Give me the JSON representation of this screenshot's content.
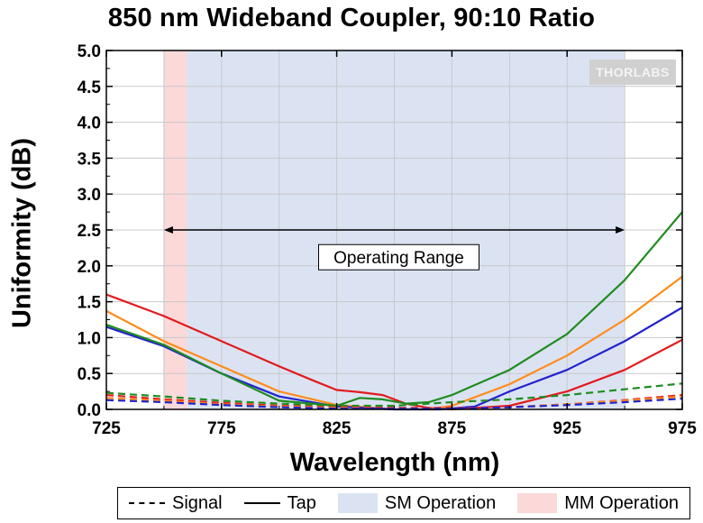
{
  "chart_data": {
    "type": "line",
    "title": "850 nm Wideband Coupler, 90:10 Ratio",
    "xlabel": "Wavelength (nm)",
    "ylabel": "Uniformity (dB)",
    "xlim": [
      725,
      975
    ],
    "ylim": [
      0,
      5.0
    ],
    "x_ticks": [
      "725",
      "775",
      "825",
      "875",
      "925",
      "975"
    ],
    "y_ticks": [
      "0.0",
      "0.5",
      "1.0",
      "1.5",
      "2.0",
      "2.5",
      "3.0",
      "3.5",
      "4.0",
      "4.5",
      "5.0"
    ],
    "grid": true,
    "regions": [
      {
        "name": "MM Operation",
        "x_start": 750,
        "x_end": 760,
        "color": "#fbd9d9"
      },
      {
        "name": "SM Operation",
        "x_start": 760,
        "x_end": 950,
        "color": "#dbe3f3"
      }
    ],
    "annotation": {
      "text": "Operating Range",
      "x_start": 750,
      "x_end": 950,
      "y": 2.5
    },
    "series": [
      {
        "label": "Tap",
        "color": "#e31a1c",
        "style": "solid",
        "x": [
          725,
          750,
          775,
          800,
          815,
          825,
          835,
          845,
          855,
          865,
          875,
          900,
          925,
          950,
          975
        ],
        "y": [
          1.6,
          1.3,
          0.95,
          0.6,
          0.4,
          0.27,
          0.24,
          0.2,
          0.08,
          0.02,
          0.0,
          0.05,
          0.25,
          0.55,
          0.97
        ]
      },
      {
        "label": "Tap",
        "color": "#ff8c1a",
        "style": "solid",
        "x": [
          725,
          750,
          775,
          800,
          825,
          850,
          865,
          875,
          900,
          925,
          950,
          975
        ],
        "y": [
          1.37,
          0.95,
          0.6,
          0.25,
          0.06,
          0.0,
          0.0,
          0.05,
          0.35,
          0.75,
          1.25,
          1.85
        ]
      },
      {
        "label": "Tap",
        "color": "#2222cc",
        "style": "solid",
        "x": [
          725,
          750,
          775,
          800,
          825,
          850,
          870,
          885,
          900,
          925,
          950,
          975
        ],
        "y": [
          1.15,
          0.88,
          0.5,
          0.18,
          0.04,
          0.0,
          0.0,
          0.04,
          0.25,
          0.55,
          0.95,
          1.42
        ]
      },
      {
        "label": "Tap",
        "color": "#1f8c1f",
        "style": "solid",
        "x": [
          725,
          750,
          775,
          800,
          825,
          835,
          845,
          855,
          865,
          875,
          900,
          925,
          950,
          975
        ],
        "y": [
          1.18,
          0.9,
          0.5,
          0.12,
          0.05,
          0.16,
          0.14,
          0.08,
          0.1,
          0.2,
          0.55,
          1.05,
          1.8,
          2.75
        ]
      },
      {
        "label": "Signal",
        "color": "#1f8c1f",
        "style": "dashed",
        "x": [
          725,
          750,
          775,
          800,
          825,
          850,
          875,
          900,
          925,
          950,
          975
        ],
        "y": [
          0.23,
          0.18,
          0.12,
          0.08,
          0.05,
          0.05,
          0.1,
          0.14,
          0.2,
          0.28,
          0.36
        ]
      },
      {
        "label": "Signal",
        "color": "#e31a1c",
        "style": "dashed",
        "x": [
          725,
          750,
          775,
          800,
          825,
          850,
          875,
          900,
          925,
          950,
          975
        ],
        "y": [
          0.2,
          0.14,
          0.09,
          0.05,
          0.03,
          0.02,
          0.02,
          0.03,
          0.07,
          0.13,
          0.2
        ]
      },
      {
        "label": "Signal",
        "color": "#ff8c1a",
        "style": "dashed",
        "x": [
          725,
          750,
          775,
          800,
          825,
          850,
          875,
          900,
          925,
          950,
          975
        ],
        "y": [
          0.16,
          0.12,
          0.07,
          0.04,
          0.02,
          0.01,
          0.01,
          0.03,
          0.07,
          0.12,
          0.18
        ]
      },
      {
        "label": "Signal",
        "color": "#2222cc",
        "style": "dashed",
        "x": [
          725,
          750,
          775,
          800,
          825,
          850,
          875,
          900,
          925,
          950,
          975
        ],
        "y": [
          0.13,
          0.1,
          0.06,
          0.03,
          0.01,
          0.01,
          0.01,
          0.03,
          0.06,
          0.1,
          0.15
        ]
      }
    ],
    "legend": {
      "position": "bottom",
      "entries": [
        {
          "label": "Signal",
          "kind": "dashed-line"
        },
        {
          "label": "Tap",
          "kind": "solid-line"
        },
        {
          "label": "SM Operation",
          "kind": "swatch",
          "color": "#dbe3f3"
        },
        {
          "label": "MM Operation",
          "kind": "swatch",
          "color": "#fbd9d9"
        }
      ]
    }
  },
  "logo": {
    "text": "THORLABS"
  }
}
